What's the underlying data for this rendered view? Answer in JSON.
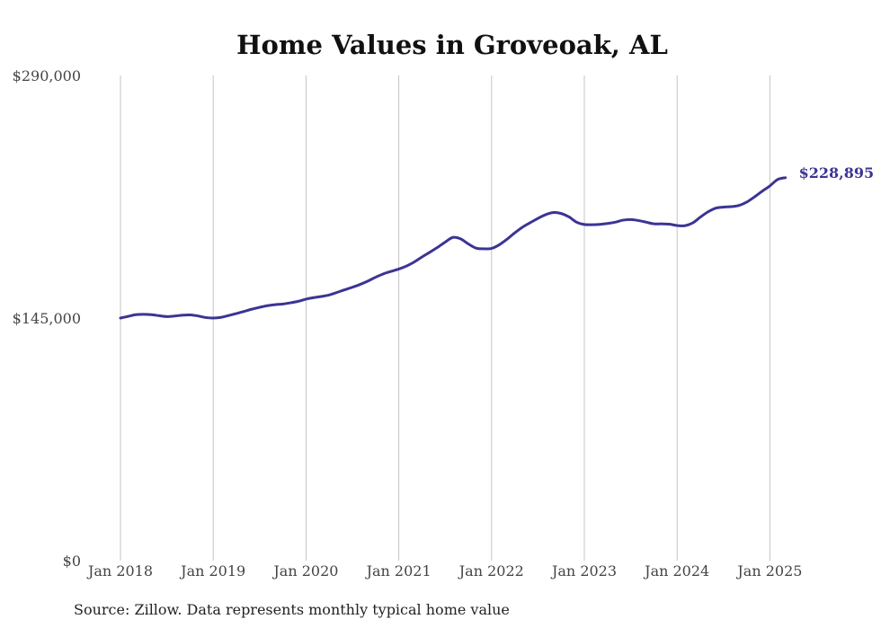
{
  "chart_data": {
    "type": "line",
    "title": "Home Values in Groveoak, AL",
    "xlabel": "",
    "ylabel": "",
    "ylim": [
      0,
      290000
    ],
    "y_ticks": [
      {
        "value": 0,
        "label": "$0"
      },
      {
        "value": 145000,
        "label": "$145,000"
      },
      {
        "value": 290000,
        "label": "$290,000"
      }
    ],
    "x_ticks": [
      {
        "value": "2018-01",
        "label": "Jan 2018"
      },
      {
        "value": "2019-01",
        "label": "Jan 2019"
      },
      {
        "value": "2020-01",
        "label": "Jan 2020"
      },
      {
        "value": "2021-01",
        "label": "Jan 2021"
      },
      {
        "value": "2022-01",
        "label": "Jan 2022"
      },
      {
        "value": "2023-01",
        "label": "Jan 2023"
      },
      {
        "value": "2024-01",
        "label": "Jan 2024"
      },
      {
        "value": "2025-01",
        "label": "Jan 2025"
      }
    ],
    "grid": {
      "vertical": true,
      "horizontal": false
    },
    "line_color": "#3b3494",
    "series": [
      {
        "x": [
          "2018-01",
          "2018-02",
          "2018-03",
          "2018-04",
          "2018-05",
          "2018-06",
          "2018-07",
          "2018-08",
          "2018-09",
          "2018-10",
          "2018-11",
          "2018-12",
          "2019-01",
          "2019-02",
          "2019-03",
          "2019-04",
          "2019-05",
          "2019-06",
          "2019-07",
          "2019-08",
          "2019-09",
          "2019-10",
          "2019-11",
          "2019-12",
          "2020-01",
          "2020-02",
          "2020-03",
          "2020-04",
          "2020-05",
          "2020-06",
          "2020-07",
          "2020-08",
          "2020-09",
          "2020-10",
          "2020-11",
          "2020-12",
          "2021-01",
          "2021-02",
          "2021-03",
          "2021-04",
          "2021-05",
          "2021-06",
          "2021-07",
          "2021-08",
          "2021-09",
          "2021-10",
          "2021-11",
          "2021-12",
          "2022-01",
          "2022-02",
          "2022-03",
          "2022-04",
          "2022-05",
          "2022-06",
          "2022-07",
          "2022-08",
          "2022-09",
          "2022-10",
          "2022-11",
          "2022-12",
          "2023-01",
          "2023-02",
          "2023-03",
          "2023-04",
          "2023-05",
          "2023-06",
          "2023-07",
          "2023-08",
          "2023-09",
          "2023-10",
          "2023-11",
          "2023-12",
          "2024-01",
          "2024-02",
          "2024-03",
          "2024-04",
          "2024-05",
          "2024-06",
          "2024-07",
          "2024-08",
          "2024-09",
          "2024-10",
          "2024-11",
          "2024-12",
          "2025-01",
          "2025-02",
          "2025-03"
        ],
        "values": [
          145000,
          146000,
          147000,
          147200,
          147000,
          146400,
          145900,
          146200,
          146700,
          146900,
          146300,
          145300,
          145000,
          145400,
          146500,
          147700,
          149000,
          150300,
          151400,
          152400,
          153000,
          153400,
          154100,
          155000,
          156300,
          157200,
          157900,
          158800,
          160300,
          161900,
          163400,
          165100,
          167100,
          169400,
          171400,
          172900,
          174300,
          176100,
          178500,
          181500,
          184300,
          187200,
          190400,
          193200,
          192300,
          189300,
          186800,
          186400,
          186600,
          188800,
          192100,
          195900,
          199300,
          202000,
          204600,
          206800,
          208100,
          207500,
          205500,
          202300,
          200900,
          200800,
          201000,
          201500,
          202300,
          203500,
          203900,
          203300,
          202300,
          201300,
          201300,
          201100,
          200300,
          200200,
          201800,
          205300,
          208500,
          210700,
          211300,
          211600,
          212300,
          214300,
          217400,
          220800,
          224000,
          227800,
          228895
        ]
      }
    ],
    "end_label": "$228,895",
    "source": "Source: Zillow. Data represents monthly typical home value"
  }
}
